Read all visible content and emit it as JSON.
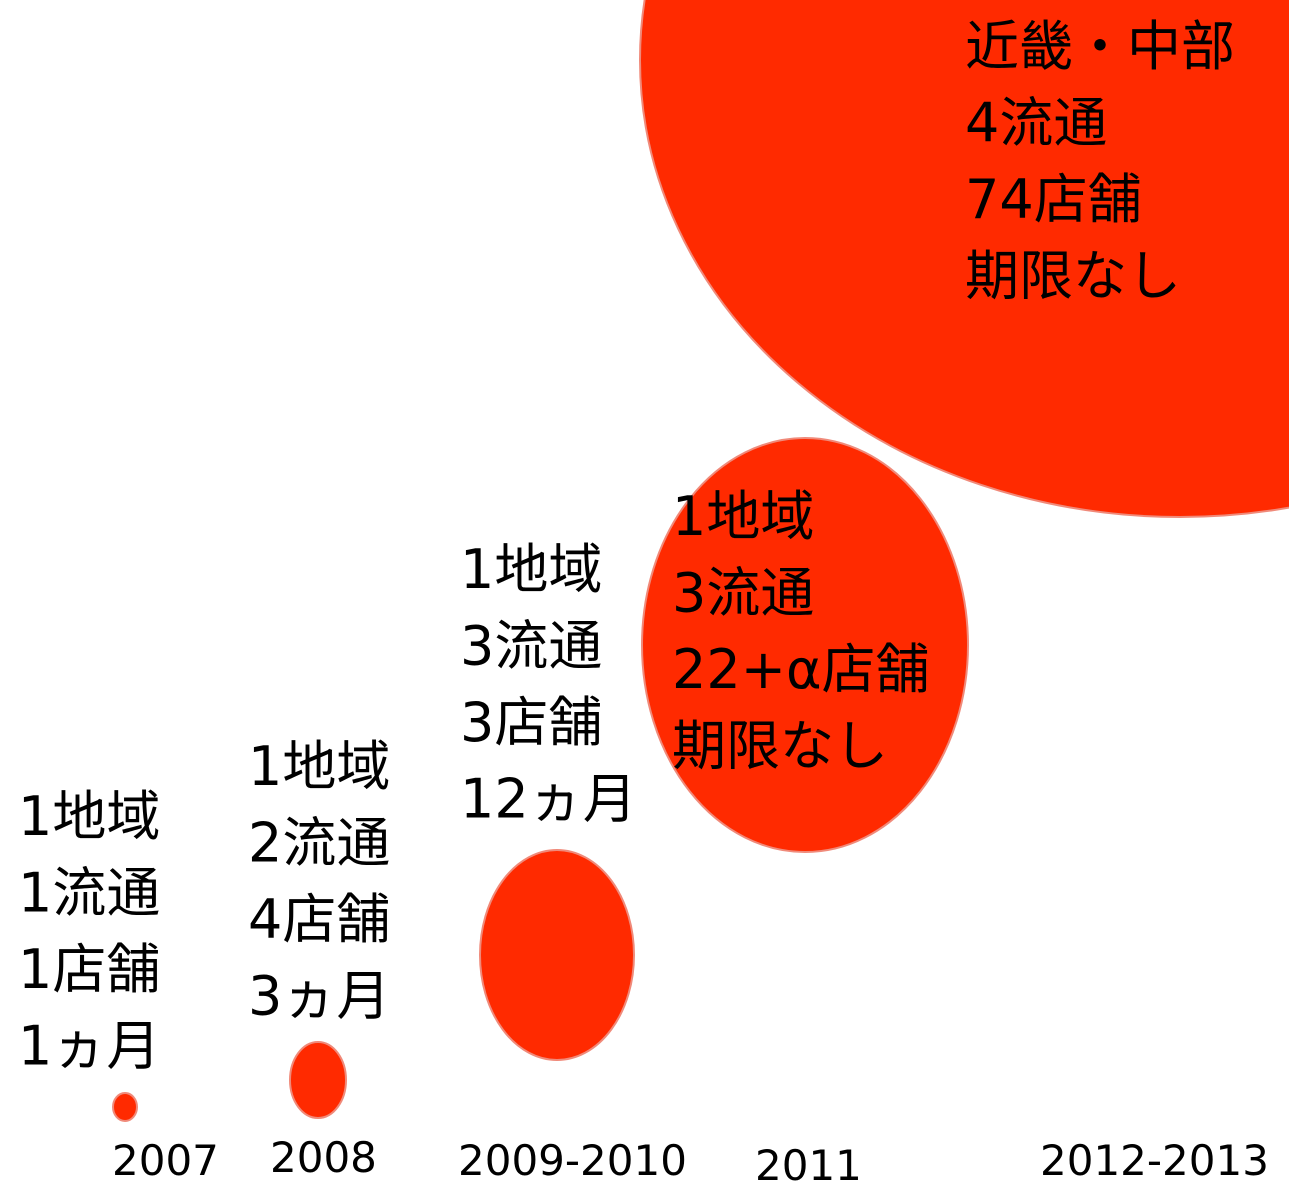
{
  "stages": [
    {
      "year": "2007",
      "lines": [
        "1地域",
        "1流通",
        "1店舗",
        "1ヵ月"
      ]
    },
    {
      "year": "2008",
      "lines": [
        "1地域",
        "2流通",
        "4店舗",
        "3ヵ月"
      ]
    },
    {
      "year": "2009-2010",
      "lines": [
        "1地域",
        "3流通",
        "3店舗",
        "12ヵ月"
      ]
    },
    {
      "year": "2011",
      "lines": [
        "1地域",
        "3流通",
        "22+α店舗",
        "期限なし"
      ]
    },
    {
      "year": "2012-2013",
      "lines": [
        "近畿・中部",
        "4流通",
        "74店舗",
        "期限なし"
      ]
    }
  ]
}
